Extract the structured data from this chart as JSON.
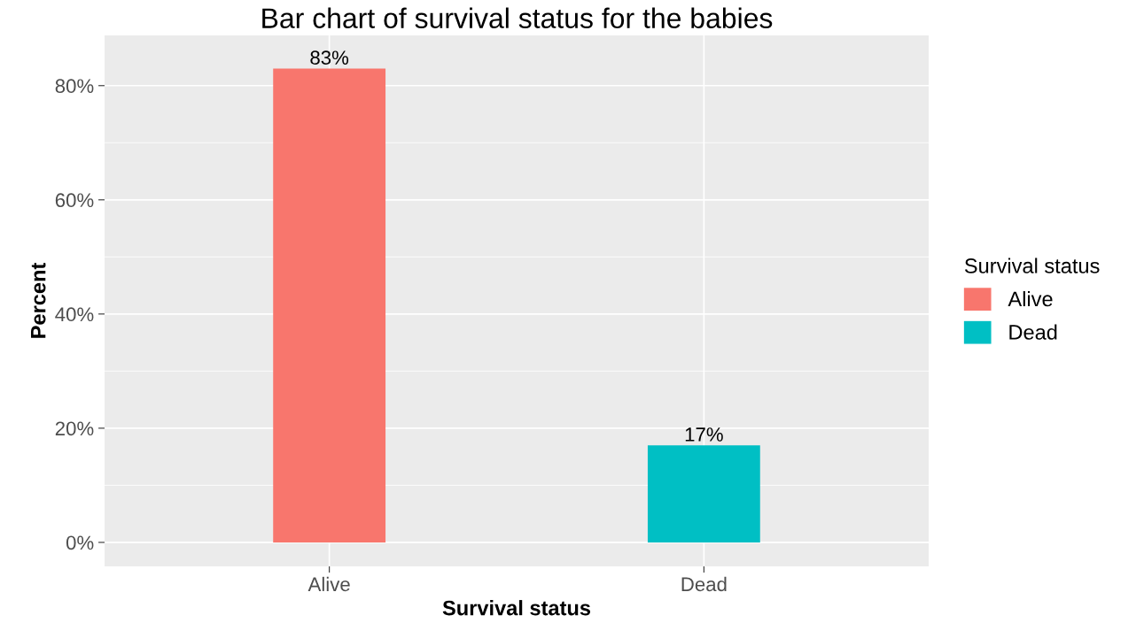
{
  "chart_data": {
    "type": "bar",
    "title": "Bar chart of survival status for the babies",
    "xlabel": "Survival status",
    "ylabel": "Percent",
    "legend_title": "Survival status",
    "categories": [
      "Alive",
      "Dead"
    ],
    "series": [
      {
        "name": "Alive",
        "color": "#f8766d",
        "values": [
          83,
          null
        ],
        "value_labels": [
          "83%",
          null
        ]
      },
      {
        "name": "Dead",
        "color": "#00bfc4",
        "values": [
          null,
          17
        ],
        "value_labels": [
          null,
          "17%"
        ]
      }
    ],
    "ylim": [
      -4.2,
      88.8
    ],
    "yticks": [
      {
        "value": 0,
        "label": "0%"
      },
      {
        "value": 20,
        "label": "20%"
      },
      {
        "value": 40,
        "label": "40%"
      },
      {
        "value": 60,
        "label": "60%"
      },
      {
        "value": 80,
        "label": "80%"
      }
    ],
    "grid": true,
    "legend": "right"
  }
}
